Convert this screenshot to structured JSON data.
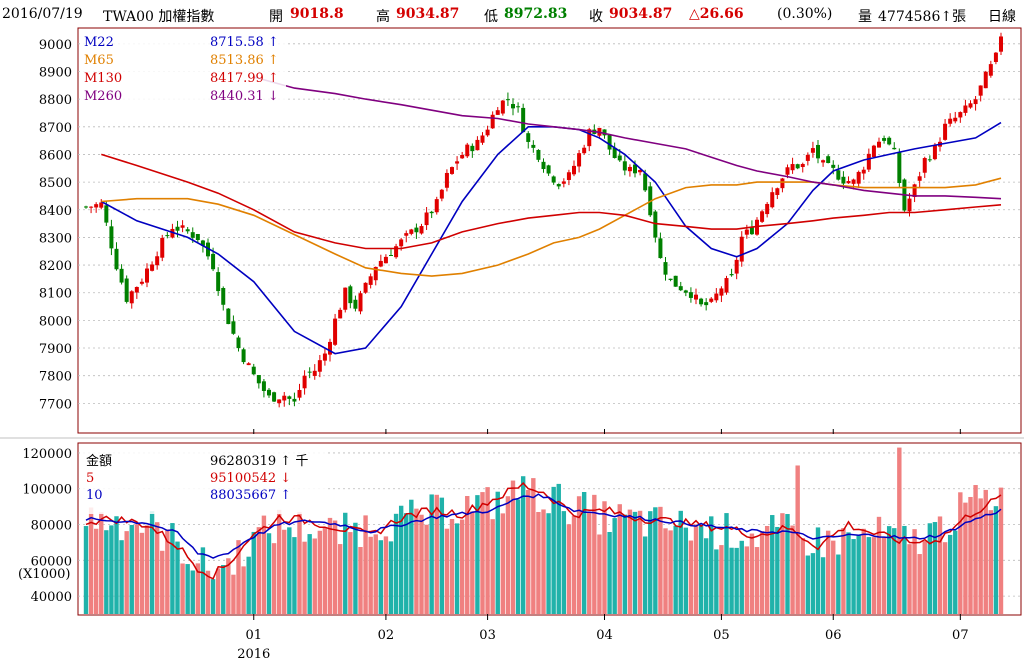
{
  "header": {
    "date": "2016/07/19",
    "symbol": "TWA00 加權指數",
    "open_label": "開",
    "open": "9018.8",
    "high_label": "高",
    "high": "9034.87",
    "low_label": "低",
    "low": "8972.83",
    "close_label": "收",
    "close": "9034.87",
    "change": "△26.66",
    "change_pct": "(0.30%)",
    "volume_label": "量",
    "volume": "4774586↑張",
    "period": "日線"
  },
  "colors": {
    "up": "#e00000",
    "down": "#008080",
    "vol_up": "#f08080",
    "vol_down": "#20b2aa",
    "m22": "#0000c0",
    "m65": "#e08000",
    "m130": "#d00000",
    "m260": "#800080",
    "frame": "#8b0000"
  },
  "chart_data": [
    {
      "type": "candlestick",
      "ylim": [
        7600,
        9050
      ],
      "yticks": [
        "9000",
        "8900",
        "8800",
        "8700",
        "8600",
        "8500",
        "8400",
        "8300",
        "8200",
        "8100",
        "8000",
        "7900",
        "7800",
        "7700"
      ],
      "xticks": [
        {
          "label": "01",
          "day": 33
        },
        {
          "label": "02",
          "day": 59
        },
        {
          "label": "03",
          "day": 79
        },
        {
          "label": "04",
          "day": 102
        },
        {
          "label": "05",
          "day": 125
        },
        {
          "label": "06",
          "day": 147
        },
        {
          "label": "07",
          "day": 172
        }
      ],
      "year_label": "2016",
      "legend": [
        {
          "name": "M22",
          "value": "8715.58",
          "arrow": "↑",
          "color": "#0000c0"
        },
        {
          "name": "M65",
          "value": "8513.86",
          "arrow": "↑",
          "color": "#e08000"
        },
        {
          "name": "M130",
          "value": "8417.99",
          "arrow": "↑",
          "color": "#d00000"
        },
        {
          "name": "M260",
          "value": "8440.31",
          "arrow": "↓",
          "color": "#800080"
        }
      ],
      "close_anchors": [
        [
          0,
          8410
        ],
        [
          3,
          8420
        ],
        [
          6,
          8200
        ],
        [
          8,
          8080
        ],
        [
          11,
          8150
        ],
        [
          14,
          8250
        ],
        [
          17,
          8340
        ],
        [
          20,
          8320
        ],
        [
          22,
          8300
        ],
        [
          25,
          8200
        ],
        [
          27,
          8050
        ],
        [
          30,
          7900
        ],
        [
          33,
          7800
        ],
        [
          36,
          7720
        ],
        [
          39,
          7730
        ],
        [
          41,
          7700
        ],
        [
          43,
          7800
        ],
        [
          45,
          7820
        ],
        [
          47,
          7880
        ],
        [
          49,
          8000
        ],
        [
          51,
          8100
        ],
        [
          53,
          8050
        ],
        [
          55,
          8120
        ],
        [
          57,
          8200
        ],
        [
          60,
          8250
        ],
        [
          63,
          8300
        ],
        [
          66,
          8350
        ],
        [
          69,
          8420
        ],
        [
          71,
          8520
        ],
        [
          73,
          8580
        ],
        [
          75,
          8620
        ],
        [
          77,
          8640
        ],
        [
          79,
          8700
        ],
        [
          81,
          8780
        ],
        [
          83,
          8800
        ],
        [
          85,
          8760
        ],
        [
          87,
          8640
        ],
        [
          89,
          8600
        ],
        [
          91,
          8530
        ],
        [
          93,
          8500
        ],
        [
          95,
          8520
        ],
        [
          97,
          8600
        ],
        [
          99,
          8680
        ],
        [
          101,
          8700
        ],
        [
          103,
          8620
        ],
        [
          105,
          8560
        ],
        [
          107,
          8540
        ],
        [
          109,
          8550
        ],
        [
          111,
          8400
        ],
        [
          113,
          8220
        ],
        [
          115,
          8140
        ],
        [
          117,
          8120
        ],
        [
          119,
          8100
        ],
        [
          121,
          8050
        ],
        [
          123,
          8060
        ],
        [
          125,
          8120
        ],
        [
          127,
          8150
        ],
        [
          129,
          8300
        ],
        [
          131,
          8330
        ],
        [
          133,
          8400
        ],
        [
          135,
          8470
        ],
        [
          137,
          8520
        ],
        [
          139,
          8560
        ],
        [
          141,
          8560
        ],
        [
          143,
          8620
        ],
        [
          145,
          8560
        ],
        [
          147,
          8540
        ],
        [
          149,
          8510
        ],
        [
          151,
          8500
        ],
        [
          153,
          8560
        ],
        [
          155,
          8640
        ],
        [
          157,
          8660
        ],
        [
          159,
          8600
        ],
        [
          161,
          8400
        ],
        [
          163,
          8480
        ],
        [
          165,
          8580
        ],
        [
          167,
          8620
        ],
        [
          169,
          8700
        ],
        [
          171,
          8730
        ],
        [
          173,
          8760
        ],
        [
          175,
          8800
        ],
        [
          177,
          8880
        ],
        [
          179,
          8950
        ],
        [
          180,
          9035
        ]
      ],
      "m22": [
        [
          3,
          8430
        ],
        [
          10,
          8360
        ],
        [
          20,
          8300
        ],
        [
          26,
          8240
        ],
        [
          33,
          8140
        ],
        [
          41,
          7960
        ],
        [
          49,
          7880
        ],
        [
          55,
          7900
        ],
        [
          62,
          8050
        ],
        [
          68,
          8240
        ],
        [
          74,
          8430
        ],
        [
          81,
          8600
        ],
        [
          87,
          8700
        ],
        [
          92,
          8700
        ],
        [
          97,
          8690
        ],
        [
          101,
          8660
        ],
        [
          106,
          8600
        ],
        [
          112,
          8500
        ],
        [
          118,
          8340
        ],
        [
          123,
          8260
        ],
        [
          128,
          8230
        ],
        [
          132,
          8260
        ],
        [
          138,
          8350
        ],
        [
          143,
          8470
        ],
        [
          147,
          8540
        ],
        [
          153,
          8580
        ],
        [
          158,
          8600
        ],
        [
          163,
          8620
        ],
        [
          169,
          8640
        ],
        [
          175,
          8660
        ],
        [
          180,
          8715
        ]
      ],
      "m65": [
        [
          3,
          8430
        ],
        [
          10,
          8440
        ],
        [
          20,
          8440
        ],
        [
          26,
          8420
        ],
        [
          33,
          8380
        ],
        [
          41,
          8310
        ],
        [
          49,
          8240
        ],
        [
          55,
          8190
        ],
        [
          62,
          8170
        ],
        [
          68,
          8160
        ],
        [
          74,
          8170
        ],
        [
          81,
          8200
        ],
        [
          87,
          8240
        ],
        [
          92,
          8280
        ],
        [
          97,
          8300
        ],
        [
          101,
          8330
        ],
        [
          106,
          8380
        ],
        [
          112,
          8440
        ],
        [
          118,
          8480
        ],
        [
          123,
          8490
        ],
        [
          128,
          8490
        ],
        [
          132,
          8500
        ],
        [
          138,
          8500
        ],
        [
          143,
          8500
        ],
        [
          147,
          8490
        ],
        [
          153,
          8480
        ],
        [
          158,
          8480
        ],
        [
          163,
          8480
        ],
        [
          169,
          8480
        ],
        [
          175,
          8490
        ],
        [
          180,
          8514
        ]
      ],
      "m130": [
        [
          3,
          8600
        ],
        [
          10,
          8560
        ],
        [
          20,
          8500
        ],
        [
          26,
          8460
        ],
        [
          33,
          8400
        ],
        [
          41,
          8320
        ],
        [
          49,
          8280
        ],
        [
          55,
          8260
        ],
        [
          62,
          8260
        ],
        [
          68,
          8280
        ],
        [
          74,
          8320
        ],
        [
          81,
          8350
        ],
        [
          87,
          8370
        ],
        [
          92,
          8380
        ],
        [
          97,
          8390
        ],
        [
          101,
          8390
        ],
        [
          106,
          8380
        ],
        [
          112,
          8350
        ],
        [
          118,
          8340
        ],
        [
          123,
          8330
        ],
        [
          128,
          8330
        ],
        [
          132,
          8340
        ],
        [
          138,
          8350
        ],
        [
          143,
          8360
        ],
        [
          147,
          8370
        ],
        [
          153,
          8380
        ],
        [
          158,
          8390
        ],
        [
          163,
          8390
        ],
        [
          169,
          8400
        ],
        [
          175,
          8410
        ],
        [
          180,
          8418
        ]
      ],
      "m260": [
        [
          33,
          8880
        ],
        [
          41,
          8840
        ],
        [
          49,
          8820
        ],
        [
          55,
          8800
        ],
        [
          62,
          8780
        ],
        [
          68,
          8760
        ],
        [
          74,
          8740
        ],
        [
          81,
          8730
        ],
        [
          87,
          8710
        ],
        [
          92,
          8700
        ],
        [
          97,
          8690
        ],
        [
          101,
          8680
        ],
        [
          106,
          8660
        ],
        [
          112,
          8640
        ],
        [
          118,
          8620
        ],
        [
          123,
          8590
        ],
        [
          128,
          8560
        ],
        [
          132,
          8540
        ],
        [
          138,
          8520
        ],
        [
          143,
          8500
        ],
        [
          147,
          8490
        ],
        [
          153,
          8470
        ],
        [
          158,
          8460
        ],
        [
          163,
          8450
        ],
        [
          169,
          8450
        ],
        [
          175,
          8445
        ],
        [
          180,
          8440
        ]
      ]
    },
    {
      "type": "bar",
      "ylim": [
        30000,
        125000
      ],
      "yticks": [
        "120000",
        "100000",
        "80000",
        "60000",
        "40000"
      ],
      "unit_label": "(X1000)",
      "legend": [
        {
          "name": "金額",
          "value": "96280319",
          "arrow": "↑",
          "unit": "千",
          "color": "#000000"
        },
        {
          "name": "5",
          "value": "95100542",
          "arrow": "↓",
          "unit": "",
          "color": "#d00000"
        },
        {
          "name": "10",
          "value": "88035667",
          "arrow": "↑",
          "unit": "",
          "color": "#0000c0"
        }
      ],
      "volume_anchors": [
        [
          0,
          84000
        ],
        [
          6,
          82000
        ],
        [
          12,
          80000
        ],
        [
          18,
          70000
        ],
        [
          22,
          58000
        ],
        [
          25,
          55000
        ],
        [
          28,
          58000
        ],
        [
          32,
          70000
        ],
        [
          38,
          80000
        ],
        [
          44,
          78000
        ],
        [
          50,
          75000
        ],
        [
          56,
          80000
        ],
        [
          62,
          82000
        ],
        [
          68,
          86000
        ],
        [
          74,
          90000
        ],
        [
          80,
          92000
        ],
        [
          86,
          98000
        ],
        [
          90,
          96000
        ],
        [
          96,
          90000
        ],
        [
          102,
          84000
        ],
        [
          108,
          82000
        ],
        [
          114,
          80000
        ],
        [
          120,
          78000
        ],
        [
          126,
          76000
        ],
        [
          132,
          74000
        ],
        [
          138,
          76000
        ],
        [
          144,
          70000
        ],
        [
          150,
          72000
        ],
        [
          156,
          74000
        ],
        [
          162,
          70000
        ],
        [
          168,
          78000
        ],
        [
          174,
          92000
        ],
        [
          180,
          96280
        ]
      ],
      "ma5_anchors": [
        [
          0,
          82000
        ],
        [
          6,
          83000
        ],
        [
          12,
          80000
        ],
        [
          18,
          68000
        ],
        [
          22,
          56000
        ],
        [
          25,
          52000
        ],
        [
          28,
          58000
        ],
        [
          32,
          72000
        ],
        [
          38,
          84000
        ],
        [
          44,
          82000
        ],
        [
          50,
          78000
        ],
        [
          56,
          74000
        ],
        [
          62,
          84000
        ],
        [
          68,
          88000
        ],
        [
          74,
          86000
        ],
        [
          80,
          94000
        ],
        [
          86,
          102000
        ],
        [
          90,
          98000
        ],
        [
          96,
          86000
        ],
        [
          102,
          88000
        ],
        [
          108,
          84000
        ],
        [
          114,
          82000
        ],
        [
          120,
          80000
        ],
        [
          126,
          78000
        ],
        [
          132,
          74000
        ],
        [
          138,
          78000
        ],
        [
          144,
          68000
        ],
        [
          150,
          80000
        ],
        [
          156,
          74000
        ],
        [
          162,
          70000
        ],
        [
          168,
          72000
        ],
        [
          174,
          86000
        ],
        [
          180,
          95100
        ]
      ],
      "ma10_anchors": [
        [
          0,
          83000
        ],
        [
          6,
          82000
        ],
        [
          12,
          81000
        ],
        [
          18,
          75000
        ],
        [
          22,
          64000
        ],
        [
          25,
          62000
        ],
        [
          28,
          64000
        ],
        [
          32,
          72000
        ],
        [
          38,
          80000
        ],
        [
          44,
          82000
        ],
        [
          50,
          80000
        ],
        [
          56,
          76000
        ],
        [
          62,
          80000
        ],
        [
          68,
          84000
        ],
        [
          74,
          86000
        ],
        [
          80,
          88000
        ],
        [
          86,
          96000
        ],
        [
          90,
          96000
        ],
        [
          96,
          88000
        ],
        [
          102,
          86000
        ],
        [
          108,
          84000
        ],
        [
          114,
          82000
        ],
        [
          120,
          80000
        ],
        [
          126,
          78000
        ],
        [
          132,
          76000
        ],
        [
          138,
          76000
        ],
        [
          144,
          72000
        ],
        [
          150,
          74000
        ],
        [
          156,
          74000
        ],
        [
          162,
          72000
        ],
        [
          168,
          74000
        ],
        [
          174,
          82000
        ],
        [
          180,
          88036
        ]
      ]
    }
  ]
}
